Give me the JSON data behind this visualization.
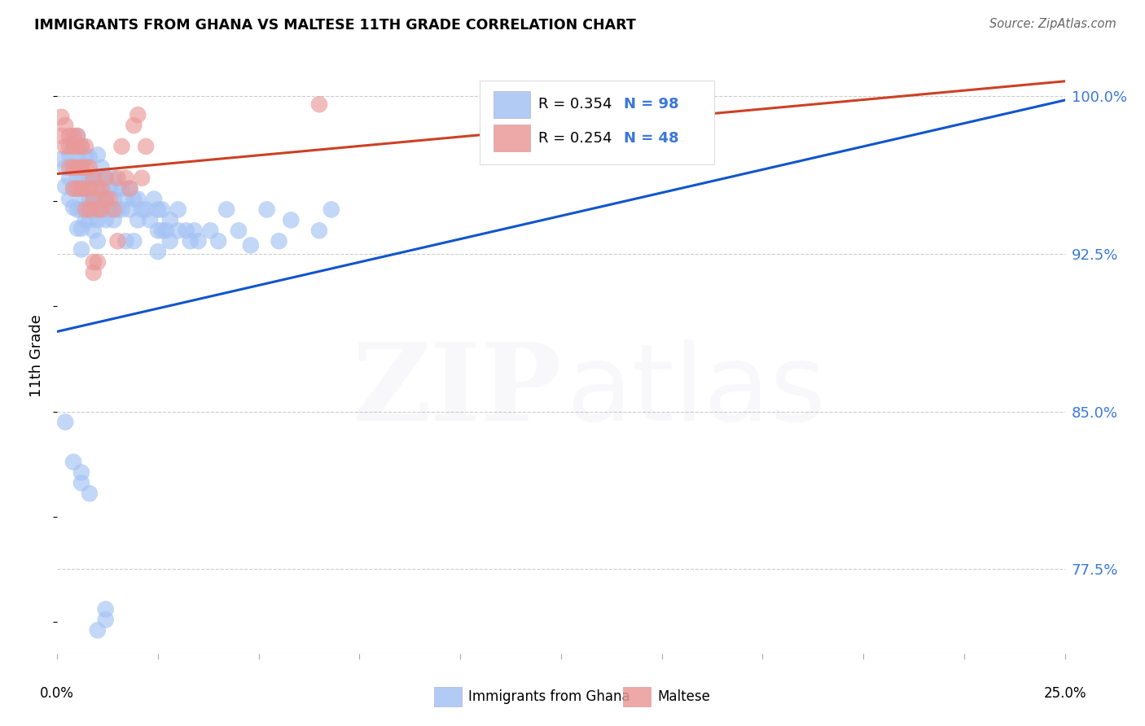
{
  "title": "IMMIGRANTS FROM GHANA VS MALTESE 11TH GRADE CORRELATION CHART",
  "source": "Source: ZipAtlas.com",
  "ylabel": "11th Grade",
  "xlim": [
    0.0,
    0.25
  ],
  "ylim": [
    0.735,
    1.018
  ],
  "yticks": [
    0.775,
    0.85,
    0.925,
    1.0
  ],
  "ytick_labels": [
    "77.5%",
    "85.0%",
    "92.5%",
    "100.0%"
  ],
  "legend_blue_r": "R = 0.354",
  "legend_blue_n": "N = 98",
  "legend_pink_r": "R = 0.254",
  "legend_pink_n": "N = 48",
  "legend_label_blue": "Immigrants from Ghana",
  "legend_label_pink": "Maltese",
  "blue_color": "#a4c2f4",
  "pink_color": "#ea9999",
  "trendline_blue": "#1155cc",
  "trendline_pink": "#cc4125",
  "blue_scatter": [
    [
      0.001,
      0.97
    ],
    [
      0.002,
      0.966
    ],
    [
      0.002,
      0.957
    ],
    [
      0.003,
      0.972
    ],
    [
      0.003,
      0.961
    ],
    [
      0.003,
      0.951
    ],
    [
      0.004,
      0.977
    ],
    [
      0.004,
      0.966
    ],
    [
      0.004,
      0.956
    ],
    [
      0.004,
      0.947
    ],
    [
      0.005,
      0.981
    ],
    [
      0.005,
      0.971
    ],
    [
      0.005,
      0.961
    ],
    [
      0.005,
      0.956
    ],
    [
      0.005,
      0.946
    ],
    [
      0.005,
      0.937
    ],
    [
      0.006,
      0.976
    ],
    [
      0.006,
      0.966
    ],
    [
      0.006,
      0.956
    ],
    [
      0.006,
      0.946
    ],
    [
      0.006,
      0.937
    ],
    [
      0.006,
      0.927
    ],
    [
      0.007,
      0.971
    ],
    [
      0.007,
      0.961
    ],
    [
      0.007,
      0.951
    ],
    [
      0.007,
      0.941
    ],
    [
      0.008,
      0.971
    ],
    [
      0.008,
      0.961
    ],
    [
      0.008,
      0.951
    ],
    [
      0.008,
      0.941
    ],
    [
      0.009,
      0.961
    ],
    [
      0.009,
      0.951
    ],
    [
      0.009,
      0.946
    ],
    [
      0.009,
      0.936
    ],
    [
      0.01,
      0.972
    ],
    [
      0.01,
      0.961
    ],
    [
      0.01,
      0.951
    ],
    [
      0.01,
      0.941
    ],
    [
      0.01,
      0.931
    ],
    [
      0.011,
      0.966
    ],
    [
      0.011,
      0.956
    ],
    [
      0.011,
      0.946
    ],
    [
      0.012,
      0.961
    ],
    [
      0.012,
      0.951
    ],
    [
      0.012,
      0.941
    ],
    [
      0.013,
      0.956
    ],
    [
      0.013,
      0.946
    ],
    [
      0.014,
      0.961
    ],
    [
      0.014,
      0.951
    ],
    [
      0.014,
      0.941
    ],
    [
      0.015,
      0.956
    ],
    [
      0.015,
      0.946
    ],
    [
      0.016,
      0.956
    ],
    [
      0.016,
      0.946
    ],
    [
      0.017,
      0.951
    ],
    [
      0.017,
      0.931
    ],
    [
      0.018,
      0.956
    ],
    [
      0.018,
      0.946
    ],
    [
      0.019,
      0.951
    ],
    [
      0.019,
      0.931
    ],
    [
      0.02,
      0.951
    ],
    [
      0.02,
      0.941
    ],
    [
      0.021,
      0.946
    ],
    [
      0.022,
      0.946
    ],
    [
      0.023,
      0.941
    ],
    [
      0.024,
      0.951
    ],
    [
      0.025,
      0.946
    ],
    [
      0.025,
      0.936
    ],
    [
      0.025,
      0.926
    ],
    [
      0.026,
      0.946
    ],
    [
      0.026,
      0.936
    ],
    [
      0.027,
      0.936
    ],
    [
      0.028,
      0.941
    ],
    [
      0.028,
      0.931
    ],
    [
      0.03,
      0.946
    ],
    [
      0.03,
      0.936
    ],
    [
      0.032,
      0.936
    ],
    [
      0.033,
      0.931
    ],
    [
      0.034,
      0.936
    ],
    [
      0.035,
      0.931
    ],
    [
      0.038,
      0.936
    ],
    [
      0.04,
      0.931
    ],
    [
      0.042,
      0.946
    ],
    [
      0.045,
      0.936
    ],
    [
      0.048,
      0.929
    ],
    [
      0.052,
      0.946
    ],
    [
      0.055,
      0.931
    ],
    [
      0.058,
      0.941
    ],
    [
      0.065,
      0.936
    ],
    [
      0.068,
      0.946
    ],
    [
      0.002,
      0.845
    ],
    [
      0.004,
      0.826
    ],
    [
      0.006,
      0.821
    ],
    [
      0.006,
      0.816
    ],
    [
      0.008,
      0.811
    ],
    [
      0.01,
      0.746
    ],
    [
      0.012,
      0.756
    ],
    [
      0.012,
      0.751
    ]
  ],
  "pink_scatter": [
    [
      0.001,
      0.99
    ],
    [
      0.001,
      0.981
    ],
    [
      0.002,
      0.986
    ],
    [
      0.002,
      0.976
    ],
    [
      0.003,
      0.981
    ],
    [
      0.003,
      0.976
    ],
    [
      0.003,
      0.966
    ],
    [
      0.004,
      0.981
    ],
    [
      0.004,
      0.976
    ],
    [
      0.004,
      0.966
    ],
    [
      0.004,
      0.956
    ],
    [
      0.005,
      0.981
    ],
    [
      0.005,
      0.976
    ],
    [
      0.005,
      0.966
    ],
    [
      0.005,
      0.956
    ],
    [
      0.006,
      0.976
    ],
    [
      0.006,
      0.966
    ],
    [
      0.006,
      0.956
    ],
    [
      0.007,
      0.976
    ],
    [
      0.007,
      0.966
    ],
    [
      0.007,
      0.956
    ],
    [
      0.007,
      0.946
    ],
    [
      0.008,
      0.966
    ],
    [
      0.008,
      0.956
    ],
    [
      0.008,
      0.946
    ],
    [
      0.009,
      0.961
    ],
    [
      0.009,
      0.951
    ],
    [
      0.009,
      0.921
    ],
    [
      0.009,
      0.916
    ],
    [
      0.01,
      0.956
    ],
    [
      0.01,
      0.946
    ],
    [
      0.01,
      0.921
    ],
    [
      0.011,
      0.956
    ],
    [
      0.011,
      0.946
    ],
    [
      0.012,
      0.951
    ],
    [
      0.012,
      0.961
    ],
    [
      0.013,
      0.951
    ],
    [
      0.014,
      0.946
    ],
    [
      0.015,
      0.931
    ],
    [
      0.015,
      0.961
    ],
    [
      0.016,
      0.976
    ],
    [
      0.017,
      0.961
    ],
    [
      0.018,
      0.956
    ],
    [
      0.019,
      0.986
    ],
    [
      0.02,
      0.991
    ],
    [
      0.021,
      0.961
    ],
    [
      0.022,
      0.976
    ],
    [
      0.065,
      0.996
    ]
  ],
  "blue_trendline_x": [
    0.0,
    0.25
  ],
  "blue_trendline_y": [
    0.888,
    0.998
  ],
  "pink_trendline_x": [
    0.0,
    0.25
  ],
  "pink_trendline_y": [
    0.963,
    1.007
  ]
}
